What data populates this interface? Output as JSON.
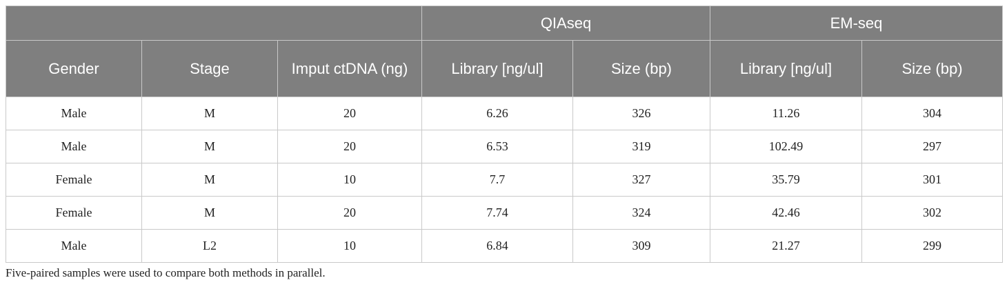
{
  "header": {
    "groups": [
      "QIAseq",
      "EM-seq"
    ],
    "columns": [
      "Gender",
      "Stage",
      "Imput ctDNA (ng)",
      "Library [ng/ul]",
      "Size (bp)",
      "Library [ng/ul]",
      "Size (bp)"
    ]
  },
  "table": {
    "rows": [
      [
        "Male",
        "M",
        "20",
        "6.26",
        "326",
        "11.26",
        "304"
      ],
      [
        "Male",
        "M",
        "20",
        "6.53",
        "319",
        "102.49",
        "297"
      ],
      [
        "Female",
        "M",
        "10",
        "7.7",
        "327",
        "35.79",
        "301"
      ],
      [
        "Female",
        "M",
        "20",
        "7.74",
        "324",
        "42.46",
        "302"
      ],
      [
        "Male",
        "L2",
        "10",
        "6.84",
        "309",
        "21.27",
        "299"
      ]
    ]
  },
  "footnote": "Five-paired samples were used to compare both methods in parallel."
}
